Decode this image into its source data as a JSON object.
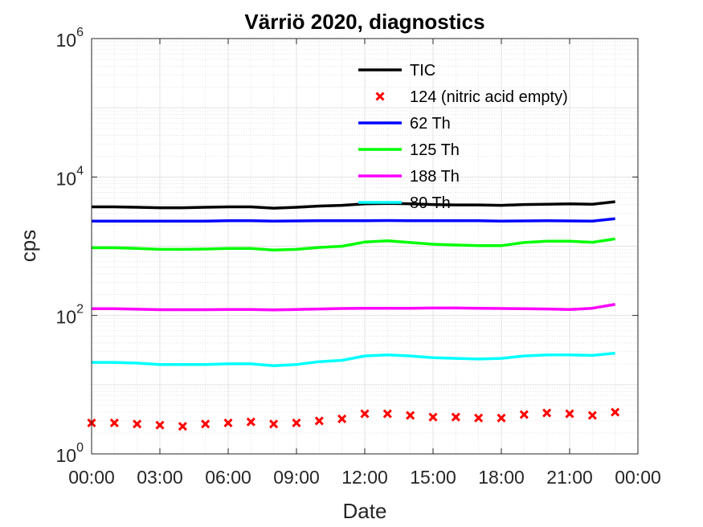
{
  "chart_data": {
    "type": "line",
    "title": "Värriö 2020, diagnostics",
    "xlabel": "Date",
    "ylabel": "cps",
    "yscale": "log",
    "ylim": [
      1,
      1000000
    ],
    "xlim": [
      "00:00",
      "24:00"
    ],
    "grid": true,
    "minor_grid": true,
    "legend_position": "top-center",
    "x_tick_labels": [
      "00:00",
      "03:00",
      "06:00",
      "09:00",
      "12:00",
      "15:00",
      "18:00",
      "21:00",
      "00:00"
    ],
    "x_tick_hours": [
      0,
      3,
      6,
      9,
      12,
      15,
      18,
      21,
      24
    ],
    "y_tick_labels": [
      {
        "base": "10",
        "exp": "0",
        "value": 1
      },
      {
        "base": "10",
        "exp": "2",
        "value": 100
      },
      {
        "base": "10",
        "exp": "4",
        "value": 10000
      },
      {
        "base": "10",
        "exp": "6",
        "value": 1000000
      }
    ],
    "x_hours": [
      0,
      1,
      2,
      3,
      4,
      5,
      6,
      7,
      8,
      9,
      10,
      11,
      12,
      13,
      14,
      15,
      16,
      17,
      18,
      19,
      20,
      21,
      22,
      23
    ],
    "series": [
      {
        "name": "TIC",
        "style": "line",
        "color": "#000000",
        "values": [
          3700,
          3700,
          3650,
          3600,
          3600,
          3650,
          3700,
          3700,
          3550,
          3650,
          3800,
          3900,
          4100,
          4150,
          4100,
          4000,
          3950,
          3950,
          3900,
          4000,
          4050,
          4100,
          4050,
          4400
        ]
      },
      {
        "name": "124 (nitric acid empty)",
        "style": "marker",
        "marker": "x",
        "color": "#ff0000",
        "values": [
          2.8,
          2.8,
          2.7,
          2.6,
          2.5,
          2.7,
          2.8,
          2.9,
          2.7,
          2.8,
          3.0,
          3.2,
          3.8,
          3.8,
          3.6,
          3.4,
          3.4,
          3.3,
          3.3,
          3.7,
          3.9,
          3.8,
          3.6,
          4.0
        ]
      },
      {
        "name": "62 Th",
        "style": "line",
        "color": "#0000ff",
        "values": [
          2300,
          2300,
          2300,
          2300,
          2300,
          2310,
          2330,
          2330,
          2300,
          2320,
          2330,
          2340,
          2340,
          2350,
          2340,
          2330,
          2330,
          2330,
          2310,
          2320,
          2330,
          2320,
          2310,
          2500
        ]
      },
      {
        "name": "125 Th",
        "style": "line",
        "color": "#00ff00",
        "values": [
          950,
          950,
          930,
          900,
          900,
          910,
          930,
          930,
          880,
          900,
          960,
          1000,
          1150,
          1200,
          1130,
          1070,
          1040,
          1020,
          1020,
          1130,
          1180,
          1180,
          1140,
          1280
        ]
      },
      {
        "name": "188 Th",
        "style": "line",
        "color": "#ff00ff",
        "values": [
          125,
          125,
          123,
          121,
          121,
          121,
          122,
          122,
          120,
          122,
          124,
          126,
          127,
          127,
          127,
          128,
          128,
          127,
          126,
          125,
          124,
          122,
          127,
          145
        ]
      },
      {
        "name": "80 Th",
        "style": "line",
        "color": "#00ffff",
        "values": [
          21,
          21,
          20.5,
          19.5,
          19.5,
          19.5,
          20,
          20,
          18.8,
          19.5,
          21.5,
          22.5,
          26,
          27,
          26,
          24.5,
          24,
          23.5,
          24,
          26,
          27,
          27,
          26.5,
          28.5
        ]
      }
    ]
  }
}
